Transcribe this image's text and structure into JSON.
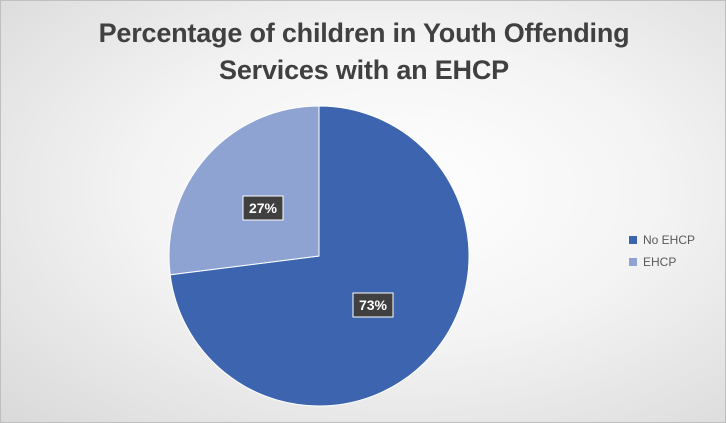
{
  "chart_data": {
    "type": "pie",
    "title_lines": [
      "Percentage of children in Youth Offending",
      "Services with an EHCP"
    ],
    "categories": [
      "No EHCP",
      "EHCP"
    ],
    "values": [
      73,
      27
    ],
    "data_labels": [
      "73%",
      "27%"
    ],
    "colors": [
      "#3d64ae",
      "#8fa3d3"
    ],
    "legend": "right"
  }
}
